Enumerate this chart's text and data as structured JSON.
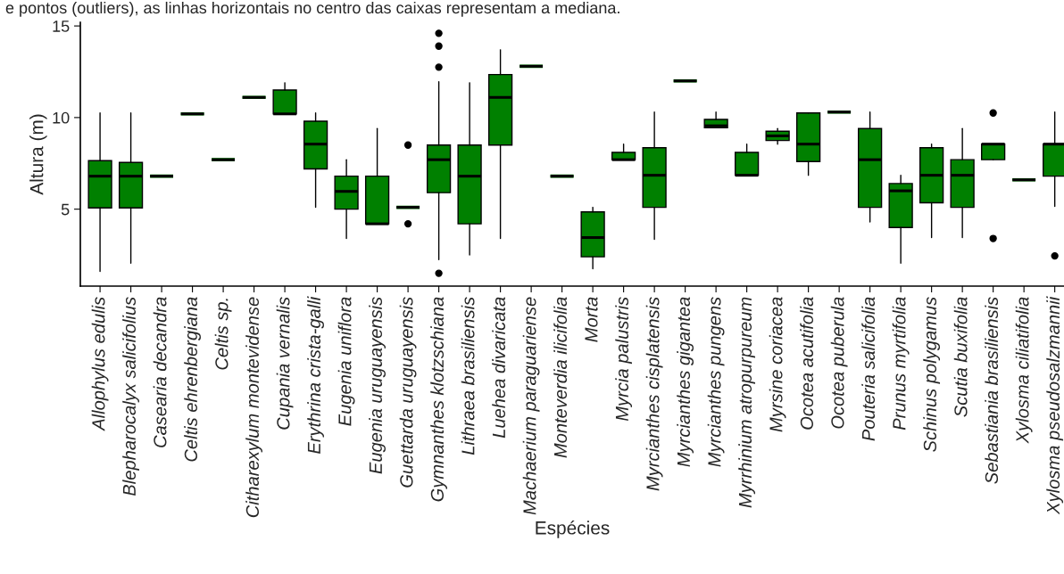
{
  "chart_data": {
    "type": "box",
    "annotations": [
      "e pontos (outliers), as linhas horizontais no centro das caixas representam a mediana."
    ],
    "xlabel": "Espécies",
    "ylabel": "Altura (m)",
    "categories": [
      "Allophylus edulis",
      "Blepharocalyx salicifolius",
      "Casearia decandra",
      "Celtis ehrenbergiana",
      "Celtis sp.",
      "Citharexylum montevidense",
      "Cupania vernalis",
      "Erythrina crista-galli",
      "Eugenia uniflora",
      "Eugenia uruguayensis",
      "Guettarda uruguayensis",
      "Gymnanthes klotzschiana",
      "Lithraea brasiliensis",
      "Luehea divaricata",
      "Machaerium paraguariense",
      "Monteverdia ilicifolia",
      "Morta",
      "Myrcia palustris",
      "Myrcianthes cisplatensis",
      "Myrcianthes gigantea",
      "Myrcianthes pungens",
      "Myrrhinium atropurpureum",
      "Myrsine coriacea",
      "Ocotea acutifolia",
      "Ocotea puberula",
      "Pouteria salicifolia",
      "Prunus myrtifolia",
      "Schinus polygamus",
      "Scutia buxifolia",
      "Sebastiania brasiliensis",
      "Xylosma ciliatifolia",
      "Xylosma pseudosalzmannii"
    ],
    "ylim": [
      0.8,
      15.2
    ],
    "yticks": [
      5,
      10,
      15
    ],
    "grid": false,
    "series": [
      {
        "color": "#008000",
        "boxes": [
          {
            "low": 1.6,
            "q1": 5.07,
            "median": 6.8,
            "q3": 7.65,
            "high": 10.25
          },
          {
            "low": 2.05,
            "q1": 5.07,
            "median": 6.8,
            "q3": 7.55,
            "high": 10.25
          },
          {
            "low": 6.8,
            "q1": 6.8,
            "median": 6.8,
            "q3": 6.8,
            "high": 6.8
          },
          {
            "low": 10.2,
            "q1": 10.2,
            "median": 10.2,
            "q3": 10.2,
            "high": 10.2
          },
          {
            "low": 7.7,
            "q1": 7.7,
            "median": 7.7,
            "q3": 7.7,
            "high": 7.7
          },
          {
            "low": 11.1,
            "q1": 11.1,
            "median": 11.1,
            "q3": 11.1,
            "high": 11.1
          },
          {
            "low": 10.2,
            "q1": 10.2,
            "median": 10.2,
            "q3": 11.5,
            "high": 11.9
          },
          {
            "low": 5.1,
            "q1": 7.2,
            "median": 8.55,
            "q3": 9.8,
            "high": 10.25
          },
          {
            "low": 3.4,
            "q1": 5.0,
            "median": 5.97,
            "q3": 6.8,
            "high": 7.7
          },
          {
            "low": 4.2,
            "q1": 4.2,
            "median": 4.2,
            "q3": 6.8,
            "high": 9.4
          },
          {
            "low": 5.1,
            "q1": 5.1,
            "median": 5.1,
            "q3": 5.1,
            "high": 5.1,
            "outliers": [
              8.5,
              4.2
            ]
          },
          {
            "low": 2.25,
            "q1": 5.9,
            "median": 7.7,
            "q3": 8.5,
            "high": 11.95,
            "outliers": [
              14.6,
              13.9,
              12.75,
              1.5
            ]
          },
          {
            "low": 2.5,
            "q1": 4.2,
            "median": 6.8,
            "q3": 8.5,
            "high": 11.9
          },
          {
            "low": 3.4,
            "q1": 8.5,
            "median": 11.1,
            "q3": 12.35,
            "high": 13.7
          },
          {
            "low": 12.8,
            "q1": 12.8,
            "median": 12.8,
            "q3": 12.8,
            "high": 12.8
          },
          {
            "low": 6.8,
            "q1": 6.8,
            "median": 6.8,
            "q3": 6.8,
            "high": 6.8
          },
          {
            "low": 1.75,
            "q1": 2.4,
            "median": 3.45,
            "q3": 4.85,
            "high": 5.1
          },
          {
            "low": 7.7,
            "q1": 7.7,
            "median": 7.7,
            "q3": 8.1,
            "high": 8.55
          },
          {
            "low": 3.35,
            "q1": 5.1,
            "median": 6.85,
            "q3": 8.35,
            "high": 10.3
          },
          {
            "low": 12.0,
            "q1": 12.0,
            "median": 12.0,
            "q3": 12.0,
            "high": 12.0
          },
          {
            "low": 9.45,
            "q1": 9.45,
            "median": 9.55,
            "q3": 9.9,
            "high": 10.3
          },
          {
            "low": 6.85,
            "q1": 6.85,
            "median": 6.85,
            "q3": 8.1,
            "high": 8.55
          },
          {
            "low": 8.55,
            "q1": 8.75,
            "median": 9.0,
            "q3": 9.25,
            "high": 9.4
          },
          {
            "low": 6.85,
            "q1": 7.6,
            "median": 8.55,
            "q3": 10.25,
            "high": 10.25
          },
          {
            "low": 10.3,
            "q1": 10.3,
            "median": 10.3,
            "q3": 10.3,
            "high": 10.3
          },
          {
            "low": 4.3,
            "q1": 5.1,
            "median": 7.7,
            "q3": 9.4,
            "high": 10.3
          },
          {
            "low": 2.05,
            "q1": 4.0,
            "median": 6.0,
            "q3": 6.4,
            "high": 6.85
          },
          {
            "low": 3.45,
            "q1": 5.35,
            "median": 6.85,
            "q3": 8.35,
            "high": 8.55
          },
          {
            "low": 3.45,
            "q1": 5.1,
            "median": 6.85,
            "q3": 7.7,
            "high": 9.4
          },
          {
            "low": 7.7,
            "q1": 7.7,
            "median": 8.55,
            "q3": 8.55,
            "high": 8.55,
            "outliers": [
              10.25,
              3.4
            ]
          },
          {
            "low": 6.6,
            "q1": 6.6,
            "median": 6.6,
            "q3": 6.6,
            "high": 6.6
          },
          {
            "low": 5.15,
            "q1": 6.8,
            "median": 8.55,
            "q3": 8.55,
            "high": 10.3,
            "outliers": [
              2.45
            ]
          }
        ]
      }
    ]
  }
}
